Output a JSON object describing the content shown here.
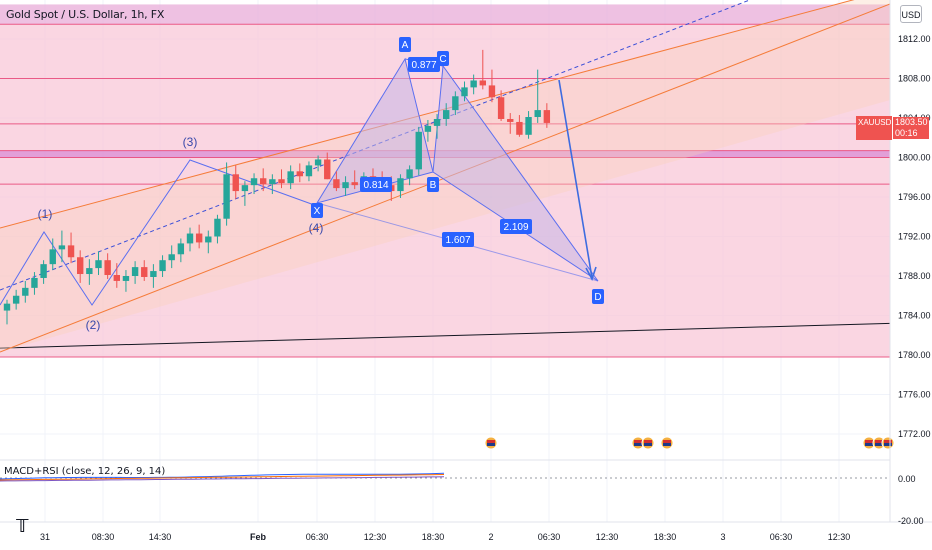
{
  "header": {
    "symbol_title": "Gold Spot / U.S. Dollar, 1h, FX",
    "currency_button": "USD"
  },
  "price_tag": {
    "symbol": "XAUUSD",
    "value": "1803.50",
    "countdown": "00:16",
    "color": "#ef5350"
  },
  "indicator": {
    "title": "MACD+RSI (close, 12, 26, 9, 14)",
    "ticks": [
      "0.00",
      "-20.00"
    ]
  },
  "colors": {
    "zone_fill": "#f8c8d8",
    "zone_border": "#e94b7c",
    "bull": "#26a69a",
    "bear": "#ef5350",
    "channel": "#f57c3a",
    "pattern": "#5b6ff0",
    "pattern_fill": "#c7b6e6"
  },
  "chart_data": {
    "type": "candlestick",
    "title": "Gold Spot / U.S. Dollar, 1h, FX",
    "y_axis": {
      "ticks": [
        1812,
        1808,
        1804,
        1800,
        1796,
        1792,
        1788,
        1784,
        1780,
        1776,
        1772
      ],
      "tick_labels": [
        "1812.00",
        "1808.00",
        "1804.00",
        "1800.00",
        "1796.00",
        "1792.00",
        "1788.00",
        "1784.00",
        "1780.00",
        "1776.00",
        "1772.00"
      ],
      "range": [
        1769,
        1816
      ]
    },
    "x_axis": {
      "tick_labels": [
        "31",
        "08:30",
        "14:30",
        "Feb",
        "06:30",
        "12:30",
        "18:30",
        "2",
        "06:30",
        "12:30",
        "18:30",
        "3",
        "06:30",
        "12:30"
      ]
    },
    "candles": [
      [
        1784.5,
        1785.6,
        1783.1,
        1785.2
      ],
      [
        1785.2,
        1786.6,
        1784.6,
        1786.0
      ],
      [
        1786.0,
        1787.5,
        1785.3,
        1786.8
      ],
      [
        1786.8,
        1788.4,
        1786.1,
        1787.8
      ],
      [
        1787.8,
        1789.6,
        1787.2,
        1789.2
      ],
      [
        1789.2,
        1791.8,
        1788.6,
        1790.7
      ],
      [
        1790.7,
        1792.6,
        1789.4,
        1791.1
      ],
      [
        1791.1,
        1792.4,
        1789.3,
        1789.9
      ],
      [
        1789.9,
        1790.6,
        1787.3,
        1788.2
      ],
      [
        1788.2,
        1789.7,
        1787.1,
        1788.8
      ],
      [
        1788.8,
        1790.5,
        1788.1,
        1789.6
      ],
      [
        1789.6,
        1790.3,
        1787.7,
        1788.1
      ],
      [
        1788.1,
        1789.3,
        1786.8,
        1787.5
      ],
      [
        1787.5,
        1788.6,
        1786.4,
        1788.0
      ],
      [
        1788.0,
        1789.5,
        1787.2,
        1788.9
      ],
      [
        1788.9,
        1789.6,
        1787.5,
        1787.9
      ],
      [
        1787.9,
        1789.2,
        1786.8,
        1788.5
      ],
      [
        1788.5,
        1790.1,
        1787.9,
        1789.6
      ],
      [
        1789.6,
        1791.1,
        1788.8,
        1790.2
      ],
      [
        1790.2,
        1791.8,
        1789.4,
        1791.3
      ],
      [
        1791.3,
        1792.9,
        1790.5,
        1792.3
      ],
      [
        1792.3,
        1793.2,
        1790.8,
        1791.4
      ],
      [
        1791.4,
        1792.6,
        1790.3,
        1792.0
      ],
      [
        1792.0,
        1794.2,
        1791.3,
        1793.8
      ],
      [
        1793.8,
        1799.5,
        1793.1,
        1798.3
      ],
      [
        1798.3,
        1799.2,
        1795.8,
        1796.6
      ],
      [
        1796.6,
        1797.6,
        1795.1,
        1797.2
      ],
      [
        1797.2,
        1798.4,
        1796.3,
        1797.9
      ],
      [
        1797.9,
        1798.9,
        1796.6,
        1797.3
      ],
      [
        1797.3,
        1798.3,
        1796.3,
        1797.8
      ],
      [
        1797.8,
        1798.8,
        1796.9,
        1797.4
      ],
      [
        1797.4,
        1799.2,
        1796.8,
        1798.6
      ],
      [
        1798.6,
        1799.4,
        1797.5,
        1798.1
      ],
      [
        1798.1,
        1799.6,
        1797.6,
        1799.2
      ],
      [
        1799.2,
        1800.2,
        1798.6,
        1799.8
      ],
      [
        1799.8,
        1800.5,
        1797.8,
        1797.8
      ],
      [
        1797.8,
        1798.6,
        1796.6,
        1796.9
      ],
      [
        1796.9,
        1798.1,
        1796.1,
        1797.5
      ],
      [
        1797.5,
        1798.7,
        1796.8,
        1797.2
      ],
      [
        1797.2,
        1798.5,
        1796.6,
        1798.1
      ],
      [
        1798.1,
        1798.9,
        1797.0,
        1797.4
      ],
      [
        1797.4,
        1798.6,
        1796.7,
        1797.2
      ],
      [
        1797.2,
        1798.1,
        1795.6,
        1796.6
      ],
      [
        1796.6,
        1798.3,
        1795.9,
        1797.9
      ],
      [
        1797.9,
        1799.2,
        1797.2,
        1798.8
      ],
      [
        1798.8,
        1803.1,
        1798.2,
        1802.6
      ],
      [
        1802.6,
        1803.8,
        1801.6,
        1803.2
      ],
      [
        1803.2,
        1804.4,
        1801.9,
        1803.9
      ],
      [
        1803.9,
        1805.5,
        1803.2,
        1804.8
      ],
      [
        1804.8,
        1806.7,
        1804.3,
        1806.2
      ],
      [
        1806.2,
        1807.7,
        1805.7,
        1807.1
      ],
      [
        1807.1,
        1808.4,
        1806.4,
        1807.8
      ],
      [
        1807.8,
        1810.9,
        1806.9,
        1807.3
      ],
      [
        1807.3,
        1808.9,
        1805.6,
        1806.1
      ],
      [
        1806.1,
        1806.8,
        1803.7,
        1803.9
      ],
      [
        1803.9,
        1804.5,
        1802.4,
        1803.6
      ],
      [
        1803.6,
        1804.3,
        1802.1,
        1802.3
      ],
      [
        1802.3,
        1804.7,
        1801.9,
        1804.1
      ],
      [
        1804.1,
        1808.9,
        1803.5,
        1804.8
      ],
      [
        1804.8,
        1805.5,
        1803.0,
        1803.5
      ]
    ],
    "horizontal_levels": [
      1813.5,
      1808.0,
      1803.4,
      1800.7,
      1800.0,
      1797.3,
      1779.8
    ],
    "annotations": {
      "wave_labels": [
        "(1)",
        "(2)",
        "(3)",
        "(4)"
      ],
      "harmonic_points": [
        "X",
        "A",
        "B",
        "C",
        "D"
      ],
      "ratios": [
        "0.877",
        "0.814",
        "1.607",
        "2.109"
      ]
    }
  }
}
